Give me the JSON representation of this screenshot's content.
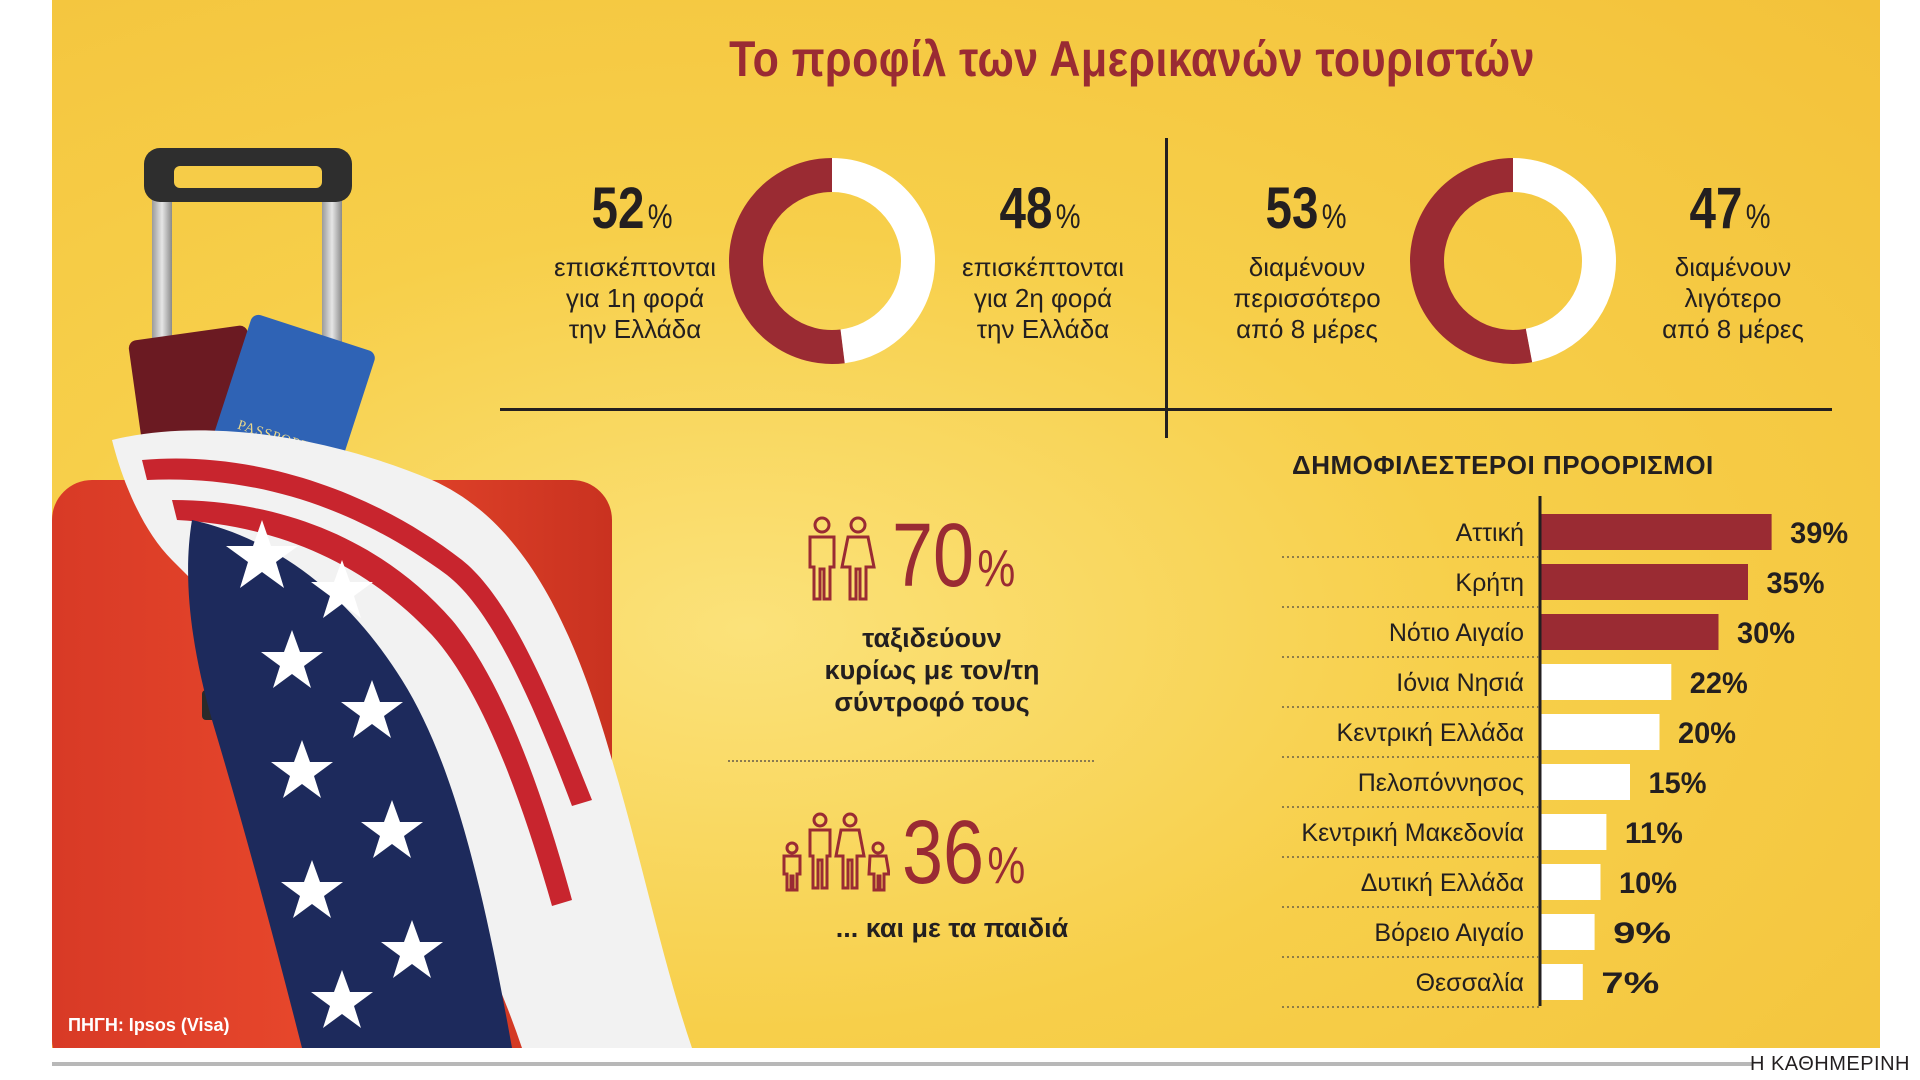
{
  "header": {
    "title": "Το προφίλ των Αμερικανών τουριστών"
  },
  "visits": {
    "first": {
      "value": "52",
      "pct": "%",
      "desc": [
        "επισκέπτονται",
        "για 1η φορά",
        "την Ελλάδα"
      ]
    },
    "second": {
      "value": "48",
      "pct": "%",
      "desc": [
        "επισκέπτονται",
        "για 2η φορά",
        "την Ελλάδα"
      ]
    }
  },
  "stay": {
    "more": {
      "value": "53",
      "pct": "%",
      "desc": [
        "διαμένουν",
        "περισσότερο",
        "από 8 μέρες"
      ]
    },
    "less": {
      "value": "47",
      "pct": "%",
      "desc": [
        "διαμένουν",
        "λιγότερο",
        "από 8 μέρες"
      ]
    }
  },
  "travel": {
    "partner": {
      "value": "70",
      "pct": "%",
      "desc": [
        "ταξιδεύουν",
        "κυρίως με τον/τη",
        "σύντροφό τους"
      ]
    },
    "kids": {
      "value": "36",
      "pct": "%",
      "desc": [
        "... και με τα παιδιά"
      ]
    }
  },
  "source": "ΠΗΓΗ: Ipsos (Visa)",
  "brand": "Η ΚΑΘΗΜΕΡΙΝΗ",
  "colors": {
    "accent": "#9a2b33",
    "white": "#ffffff",
    "background": "#f7cf4a",
    "ink": "#231f20"
  },
  "chart_data": [
    {
      "type": "pie",
      "categories": [
        "επισκέπτονται για 1η φορά την Ελλάδα",
        "επισκέπτονται για 2η φορά την Ελλάδα"
      ],
      "values": [
        52,
        48
      ]
    },
    {
      "type": "pie",
      "categories": [
        "διαμένουν περισσότερο από 8 μέρες",
        "διαμένουν λιγότερο από 8 μέρες"
      ],
      "values": [
        53,
        47
      ]
    },
    {
      "type": "bar",
      "title": "ΔΗΜΟΦΙΛΕΣΤΕΡΟΙ ΠΡΟΟΡΙΣΜΟΙ",
      "categories": [
        "Αττική",
        "Κρήτη",
        "Νότιο Αιγαίο",
        "Ιόνια Νησιά",
        "Κεντρική Ελλάδα",
        "Πελοπόννησος",
        "Κεντρική Μακεδονία",
        "Δυτική Ελλάδα",
        "Βόρειο Αιγαίο",
        "Θεσσαλία"
      ],
      "values": [
        39,
        35,
        30,
        22,
        20,
        15,
        11,
        10,
        9,
        7
      ],
      "labels": [
        "39%",
        "35%",
        "30%",
        "22%",
        "20%",
        "15%",
        "11%",
        "10%",
        "9%",
        "7%"
      ],
      "highlight_count": 3,
      "xlim": [
        0,
        40
      ]
    }
  ]
}
